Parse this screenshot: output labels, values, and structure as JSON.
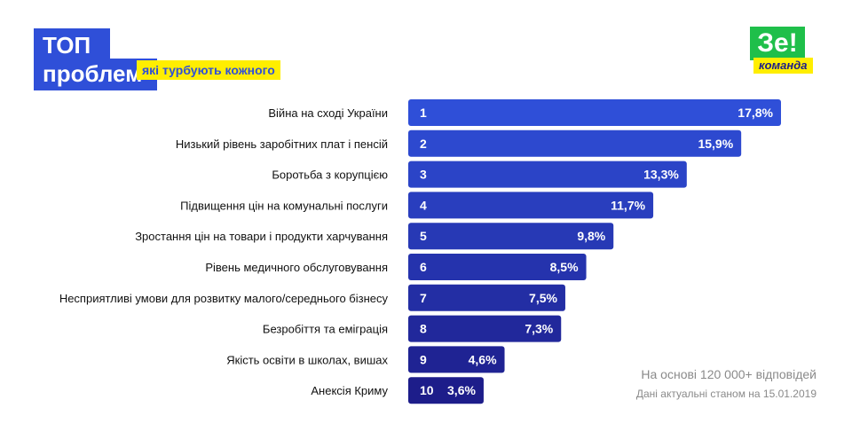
{
  "header": {
    "title_line1": "ТОП",
    "title_line2": "проблем",
    "subtitle": "які турбують кожного"
  },
  "logo": {
    "main": "Зе!",
    "sub": "команда"
  },
  "footnote": {
    "line1": "На основі 120 000+ відповідей",
    "line2": "Дані актуальні станом на 15.01.2019"
  },
  "colors": {
    "bar_start": "#2f4fd8",
    "bar_end": "#1d1d8a",
    "accent_yellow": "#ffee00",
    "logo_green": "#1fbf4a"
  },
  "chart_data": {
    "type": "bar",
    "orientation": "horizontal",
    "categories": [
      "Війна на сході України",
      "Низький рівень заробітних плат і пенсій",
      "Боротьба з корупцією",
      "Підвищення цін на комунальні послуги",
      "Зростання цін на товари і продукти харчування",
      "Рівень медичного обслуговування",
      "Несприятливі умови для розвитку малого/середнього бізнесу",
      "Безробіття та еміграція",
      "Якість освіти в школах, вишах",
      "Анексія Криму"
    ],
    "ranks": [
      "1",
      "2",
      "3",
      "4",
      "5",
      "6",
      "7",
      "8",
      "9",
      "10"
    ],
    "values": [
      17.8,
      15.9,
      13.3,
      11.7,
      9.8,
      8.5,
      7.5,
      7.3,
      4.6,
      3.6
    ],
    "value_labels": [
      "17,8%",
      "15,9%",
      "13,3%",
      "11,7%",
      "9,8%",
      "8,5%",
      "7,5%",
      "7,3%",
      "4,6%",
      "3,6%"
    ]
  }
}
